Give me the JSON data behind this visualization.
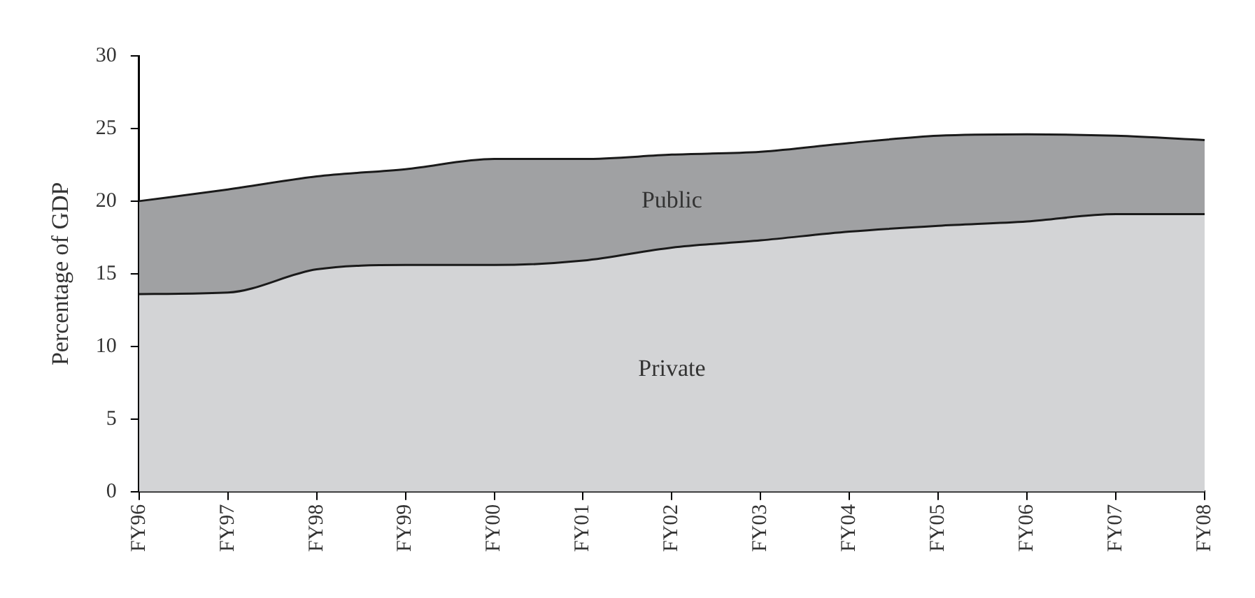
{
  "chart_data": {
    "type": "area",
    "stacked": true,
    "ylabel": "Percentage of GDP",
    "categories": [
      "FY96",
      "FY97",
      "FY98",
      "FY99",
      "FY00",
      "FY01",
      "FY02",
      "FY03",
      "FY04",
      "FY05",
      "FY06",
      "FY07",
      "FY08"
    ],
    "series": [
      {
        "name": "Private",
        "color": "#d3d4d6",
        "values": [
          13.6,
          13.7,
          15.3,
          15.6,
          15.6,
          15.9,
          16.8,
          17.3,
          17.9,
          18.3,
          18.6,
          19.1,
          19.1
        ]
      },
      {
        "name": "Public",
        "color": "#a0a1a3",
        "values": [
          6.4,
          7.1,
          6.4,
          6.6,
          7.3,
          7.0,
          6.4,
          6.1,
          6.1,
          6.2,
          6.0,
          5.4,
          5.1
        ]
      }
    ],
    "ylim": [
      0,
      30
    ],
    "yticks": [
      0,
      5,
      10,
      15,
      20,
      25,
      30
    ],
    "grid": false,
    "legend": false
  }
}
